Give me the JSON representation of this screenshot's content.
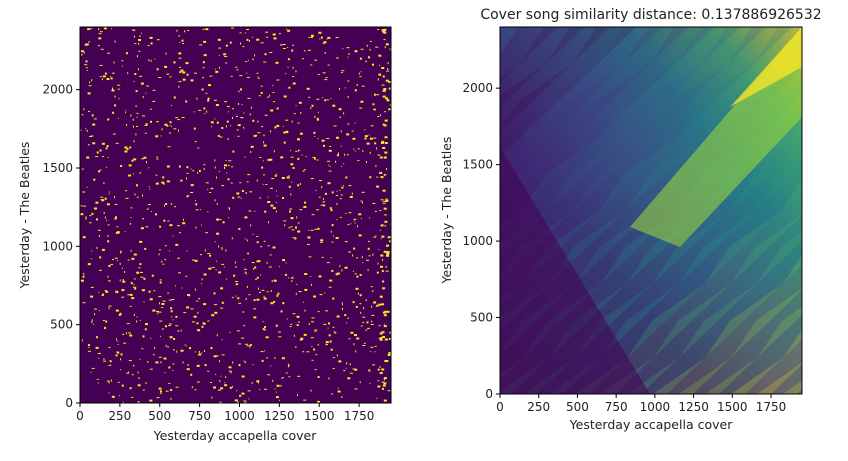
{
  "chart_data": [
    {
      "type": "heatmap",
      "title": "",
      "xlabel": "Yesterday accapella cover",
      "ylabel": "Yesterday - The Beatles",
      "xlim": [
        0,
        1950
      ],
      "ylim": [
        0,
        2400
      ],
      "xticks": [
        0,
        250,
        500,
        750,
        1000,
        1250,
        1500,
        1750
      ],
      "yticks": [
        0,
        500,
        1000,
        1500,
        2000
      ],
      "colormap": "viridis",
      "values_description": "binary cross-recurrence matrix (0 = dark purple, 1 = yellow), sparse scattered points",
      "background_color": "#440154",
      "point_color": "#fde725"
    },
    {
      "type": "heatmap",
      "title": "Cover song similarity distance: 0.137886926532",
      "xlabel": "Yesterday accapella cover",
      "ylabel": "Yesterday - The Beatles",
      "xlim": [
        0,
        1950
      ],
      "ylim": [
        0,
        2400
      ],
      "xticks": [
        0,
        250,
        500,
        750,
        1000,
        1250,
        1500,
        1750
      ],
      "yticks": [
        0,
        500,
        1000,
        1500,
        2000
      ],
      "colormap": "viridis",
      "values_description": "cumulative alignment score matrix, increasing toward upper right along diagonal bands",
      "colormap_stops": [
        "#440154",
        "#46327e",
        "#365c8d",
        "#277f8e",
        "#1fa187",
        "#4ac16d",
        "#a0da39",
        "#fde725"
      ]
    }
  ]
}
